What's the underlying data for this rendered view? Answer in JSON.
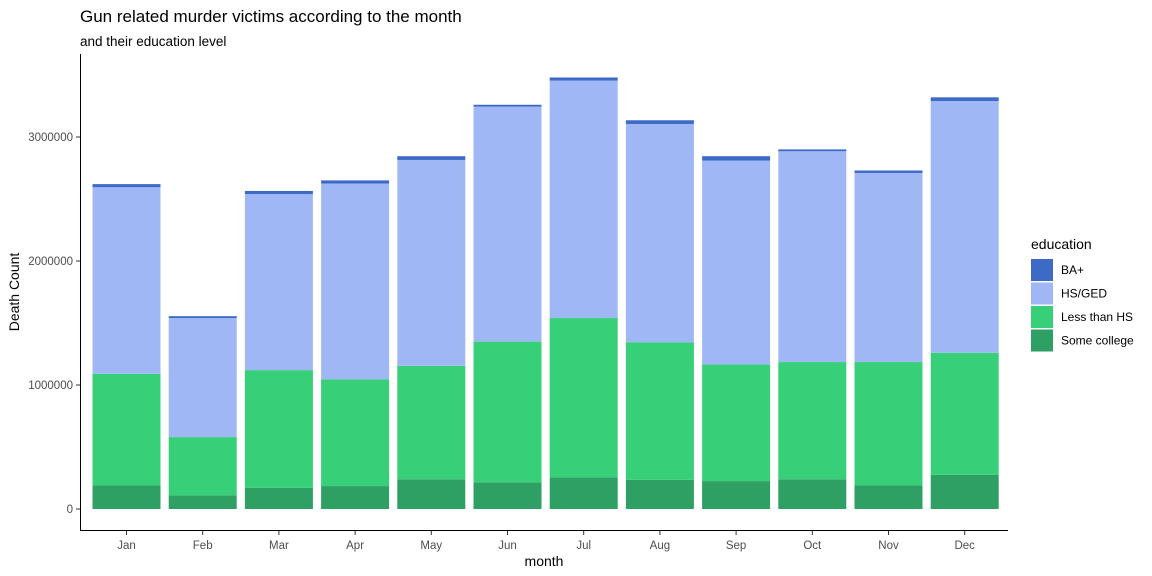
{
  "chart_data": {
    "type": "bar",
    "stacked": true,
    "title": "Gun related murder victims according to the month",
    "subtitle": "and their education level",
    "xlabel": "month",
    "ylabel": "Death Count",
    "categories": [
      "Jan",
      "Feb",
      "Mar",
      "Apr",
      "May",
      "Jun",
      "Jul",
      "Aug",
      "Sep",
      "Oct",
      "Nov",
      "Dec"
    ],
    "ylim": [
      0,
      3600000
    ],
    "yticks": [
      0,
      1000000,
      2000000,
      3000000
    ],
    "ytick_labels": [
      "0",
      "1000000",
      "2000000",
      "3000000"
    ],
    "grid": false,
    "legend_title": "education",
    "legend_position": "right",
    "series": [
      {
        "name": "Some college",
        "color": "#2ea064",
        "values": [
          190000,
          110000,
          170000,
          185000,
          240000,
          215000,
          255000,
          235000,
          225000,
          240000,
          190000,
          275000
        ]
      },
      {
        "name": "Less than HS",
        "color": "#38cf79",
        "values": [
          900000,
          470000,
          950000,
          860000,
          915000,
          1135000,
          1285000,
          1110000,
          940000,
          945000,
          995000,
          985000
        ]
      },
      {
        "name": "HS/GED",
        "color": "#9fb8f5",
        "values": [
          1505000,
          960000,
          1420000,
          1580000,
          1660000,
          1895000,
          1915000,
          1760000,
          1645000,
          1700000,
          1525000,
          2030000
        ]
      },
      {
        "name": "BA+",
        "color": "#3d69c7",
        "values": [
          25000,
          15000,
          25000,
          25000,
          30000,
          15000,
          25000,
          30000,
          35000,
          15000,
          20000,
          30000
        ]
      }
    ],
    "legend_order": [
      "BA+",
      "HS/GED",
      "Less than HS",
      "Some college"
    ]
  }
}
